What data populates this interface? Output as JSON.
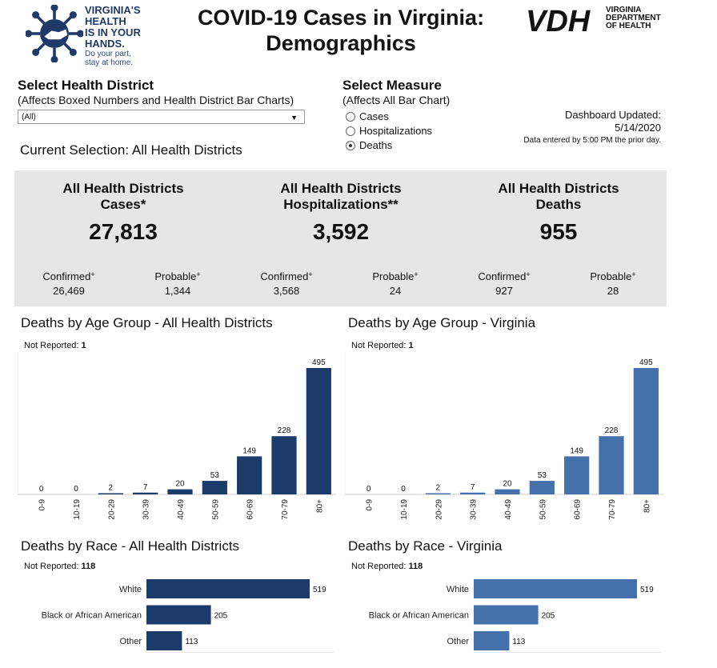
{
  "header": {
    "logo_lines": [
      "VIRGINIA'S",
      "HEALTH",
      "IS IN YOUR",
      "HANDS."
    ],
    "logo_sub": [
      "Do your part,",
      "stay at home."
    ],
    "title_line1": "COVID-19 Cases in Virginia:",
    "title_line2": "Demographics",
    "vdh_mark": "VDH",
    "vdh_lines": [
      "VIRGINIA",
      "DEPARTMENT",
      "OF HEALTH"
    ]
  },
  "district_select": {
    "title": "Select Health District",
    "subtitle": "(Affects Boxed Numbers and Health District Bar Charts)",
    "value": "(All)"
  },
  "measure_select": {
    "title": "Select Measure",
    "subtitle": "(Affects All Bar Chart)",
    "options": [
      "Cases",
      "Hospitalizations",
      "Deaths"
    ],
    "selected": "Deaths"
  },
  "updated": {
    "label": "Dashboard Updated:",
    "date": "5/14/2020",
    "note": "Data entered by 5:00 PM the prior day."
  },
  "current_selection": "Current Selection: All Health Districts",
  "summary": {
    "cases": {
      "head1": "All Health Districts",
      "head2": "Cases*",
      "total": "27,813",
      "confirmed_label": "Confirmed",
      "confirmed": "26,469",
      "probable_label": "Probable",
      "probable": "1,344"
    },
    "hosp": {
      "head1": "All Health Districts",
      "head2": "Hospitalizations**",
      "total": "3,592",
      "confirmed_label": "Confirmed",
      "confirmed": "3,568",
      "probable_label": "Probable",
      "probable": "24"
    },
    "deaths": {
      "head1": "All Health Districts",
      "head2": "Deaths",
      "total": "955",
      "confirmed_label": "Confirmed",
      "confirmed": "927",
      "probable_label": "Probable",
      "probable": "28"
    },
    "dagger": "+"
  },
  "colors": {
    "district": "#1b3b6b",
    "virginia": "#4470ac",
    "panel": "#e6e6e6"
  },
  "chart_data": [
    {
      "type": "bar",
      "title": "Deaths by Age Group - All Health Districts",
      "not_reported_label": "Not Reported:",
      "not_reported": "1",
      "categories": [
        "0-9",
        "10-19",
        "20-29",
        "30-39",
        "40-49",
        "50-59",
        "60-69",
        "70-79",
        "80+"
      ],
      "values": [
        0,
        0,
        2,
        7,
        20,
        53,
        149,
        228,
        495
      ],
      "ylim": [
        0,
        495
      ]
    },
    {
      "type": "bar",
      "title": "Deaths by Age Group - Virginia",
      "not_reported_label": "Not Reported:",
      "not_reported": "1",
      "categories": [
        "0-9",
        "10-19",
        "20-29",
        "30-39",
        "40-49",
        "50-59",
        "60-69",
        "70-79",
        "80+"
      ],
      "values": [
        0,
        0,
        2,
        7,
        20,
        53,
        149,
        228,
        495
      ],
      "ylim": [
        0,
        495
      ]
    },
    {
      "type": "bar",
      "orientation": "horizontal",
      "title": "Deaths by Race - All Health Districts",
      "not_reported_label": "Not Reported:",
      "not_reported": "118",
      "categories": [
        "White",
        "Black or African American",
        "Other"
      ],
      "values": [
        519,
        205,
        113
      ]
    },
    {
      "type": "bar",
      "orientation": "horizontal",
      "title": "Deaths by Race - Virginia",
      "not_reported_label": "Not Reported:",
      "not_reported": "118",
      "categories": [
        "White",
        "Black or African American",
        "Other"
      ],
      "values": [
        519,
        205,
        113
      ]
    }
  ]
}
